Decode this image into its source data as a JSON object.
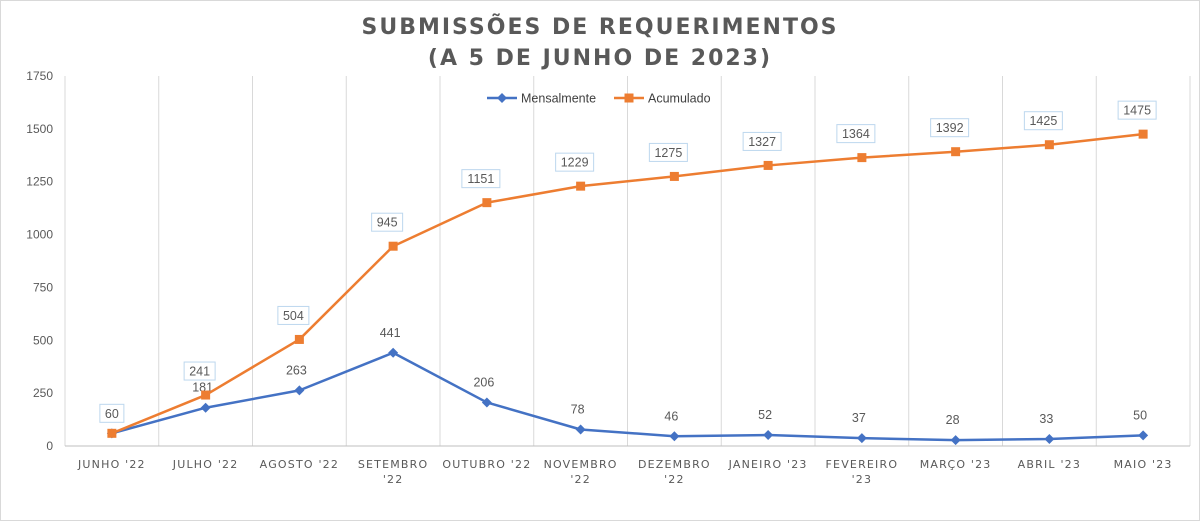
{
  "chart_data": {
    "type": "line",
    "title_lines": [
      "SUBMISSÕES DE REQUERIMENTOS",
      "(A 5 DE JUNHO DE 2023)"
    ],
    "categories": [
      [
        "JUNHO '22"
      ],
      [
        "JULHO '22"
      ],
      [
        "AGOSTO '22"
      ],
      [
        "SETEMBRO",
        "'22"
      ],
      [
        "OUTUBRO '22"
      ],
      [
        "NOVEMBRO",
        "'22"
      ],
      [
        "DEZEMBRO",
        "'22"
      ],
      [
        "JANEIRO '23"
      ],
      [
        "FEVEREIRO",
        "'23"
      ],
      [
        "MARÇO '23"
      ],
      [
        "ABRIL '23"
      ],
      [
        "MAIO '23"
      ]
    ],
    "series": [
      {
        "name": "Mensalmente",
        "color": "#4472C4",
        "marker": "diamond",
        "values": [
          60,
          181,
          263,
          441,
          206,
          78,
          46,
          52,
          37,
          28,
          33,
          50
        ]
      },
      {
        "name": "Acumulado",
        "color": "#ED7D31",
        "marker": "square",
        "values": [
          60,
          241,
          504,
          945,
          1151,
          1229,
          1275,
          1327,
          1364,
          1392,
          1425,
          1475
        ]
      }
    ],
    "yticks": [
      0,
      250,
      500,
      750,
      1000,
      1250,
      1500,
      1750
    ],
    "ylim": [
      0,
      1750
    ],
    "grid": "vertical",
    "legend_position": "top"
  }
}
